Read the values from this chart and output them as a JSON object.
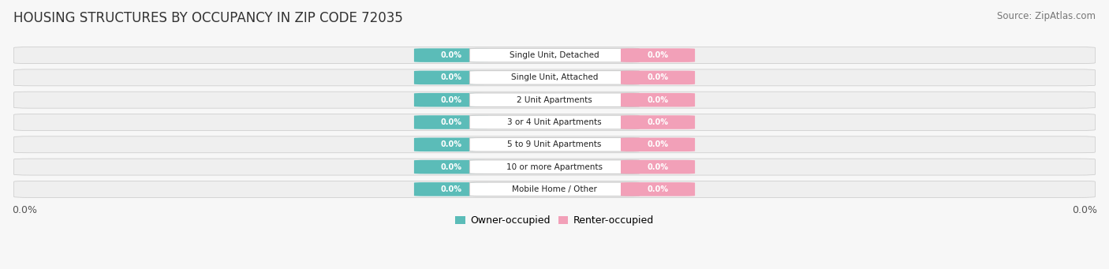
{
  "title": "HOUSING STRUCTURES BY OCCUPANCY IN ZIP CODE 72035",
  "source": "Source: ZipAtlas.com",
  "categories": [
    "Single Unit, Detached",
    "Single Unit, Attached",
    "2 Unit Apartments",
    "3 or 4 Unit Apartments",
    "5 to 9 Unit Apartments",
    "10 or more Apartments",
    "Mobile Home / Other"
  ],
  "owner_values": [
    0.0,
    0.0,
    0.0,
    0.0,
    0.0,
    0.0,
    0.0
  ],
  "renter_values": [
    0.0,
    0.0,
    0.0,
    0.0,
    0.0,
    0.0,
    0.0
  ],
  "owner_color": "#5bbcb8",
  "renter_color": "#f2a0b8",
  "bar_bg_color": "#eeeeee",
  "bar_outline_color": "#d0d0d0",
  "title_fontsize": 12,
  "source_fontsize": 8.5,
  "axis_label_fontsize": 9,
  "legend_fontsize": 9,
  "xlim": [
    -1.0,
    1.0
  ],
  "figsize": [
    14.06,
    3.41
  ],
  "dpi": 100
}
